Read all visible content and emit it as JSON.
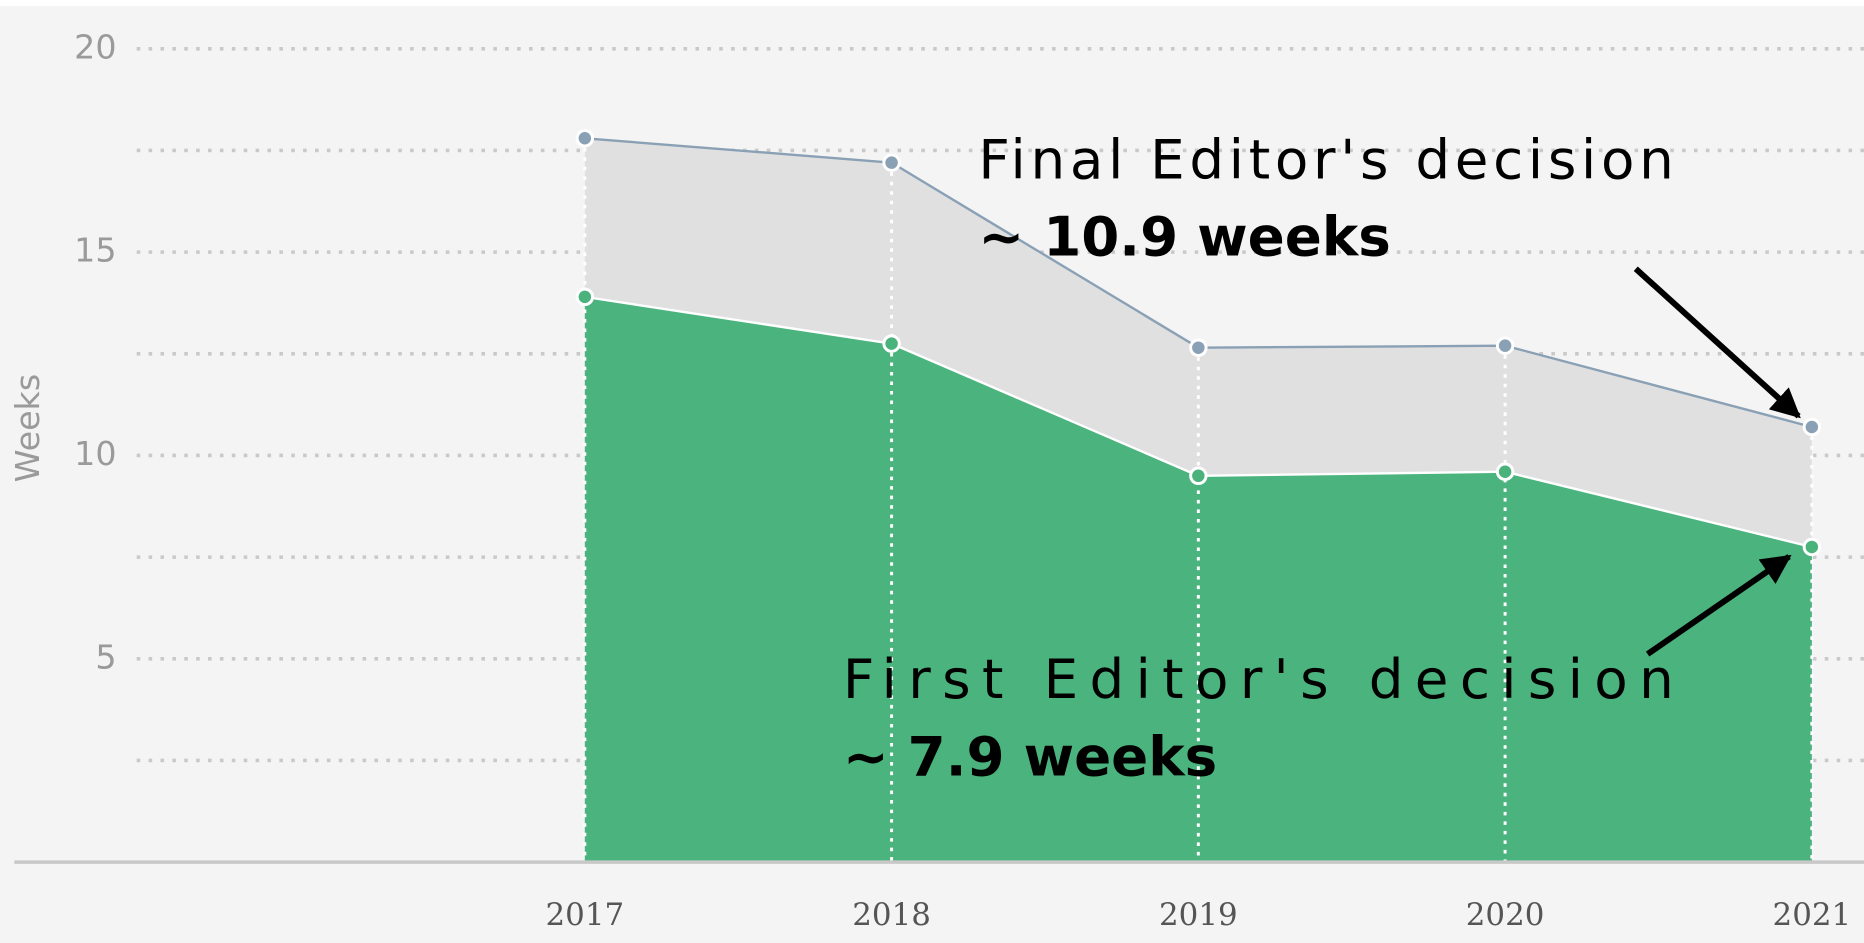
{
  "chart_data": {
    "type": "area",
    "y_label": "Weeks",
    "x": [
      2017,
      2018,
      2019,
      2020,
      2021
    ],
    "xlim": [
      2015.14,
      2021.17
    ],
    "ylim": [
      0,
      21.2
    ],
    "yticks": [
      5,
      10,
      15,
      20
    ],
    "minor_yticks": [
      2.5,
      7.5,
      12.5,
      17.5
    ],
    "grid": true,
    "series": [
      {
        "name": "Final Editor's decision",
        "color": "#8aa0b4",
        "fill": "#e0e0e0",
        "values": [
          17.8,
          17.2,
          12.65,
          12.7,
          10.7
        ]
      },
      {
        "name": "First Editor's decision",
        "color": "#4ab37c",
        "fill": "#4bb37d",
        "values": [
          13.9,
          12.75,
          9.5,
          9.6,
          7.75
        ]
      }
    ],
    "annotations": [
      {
        "text": "Final Editor's decision",
        "detail": "~ 10.9 weeks"
      },
      {
        "text": "First Editor's decision",
        "detail": "~ 7.9 weeks"
      }
    ]
  }
}
